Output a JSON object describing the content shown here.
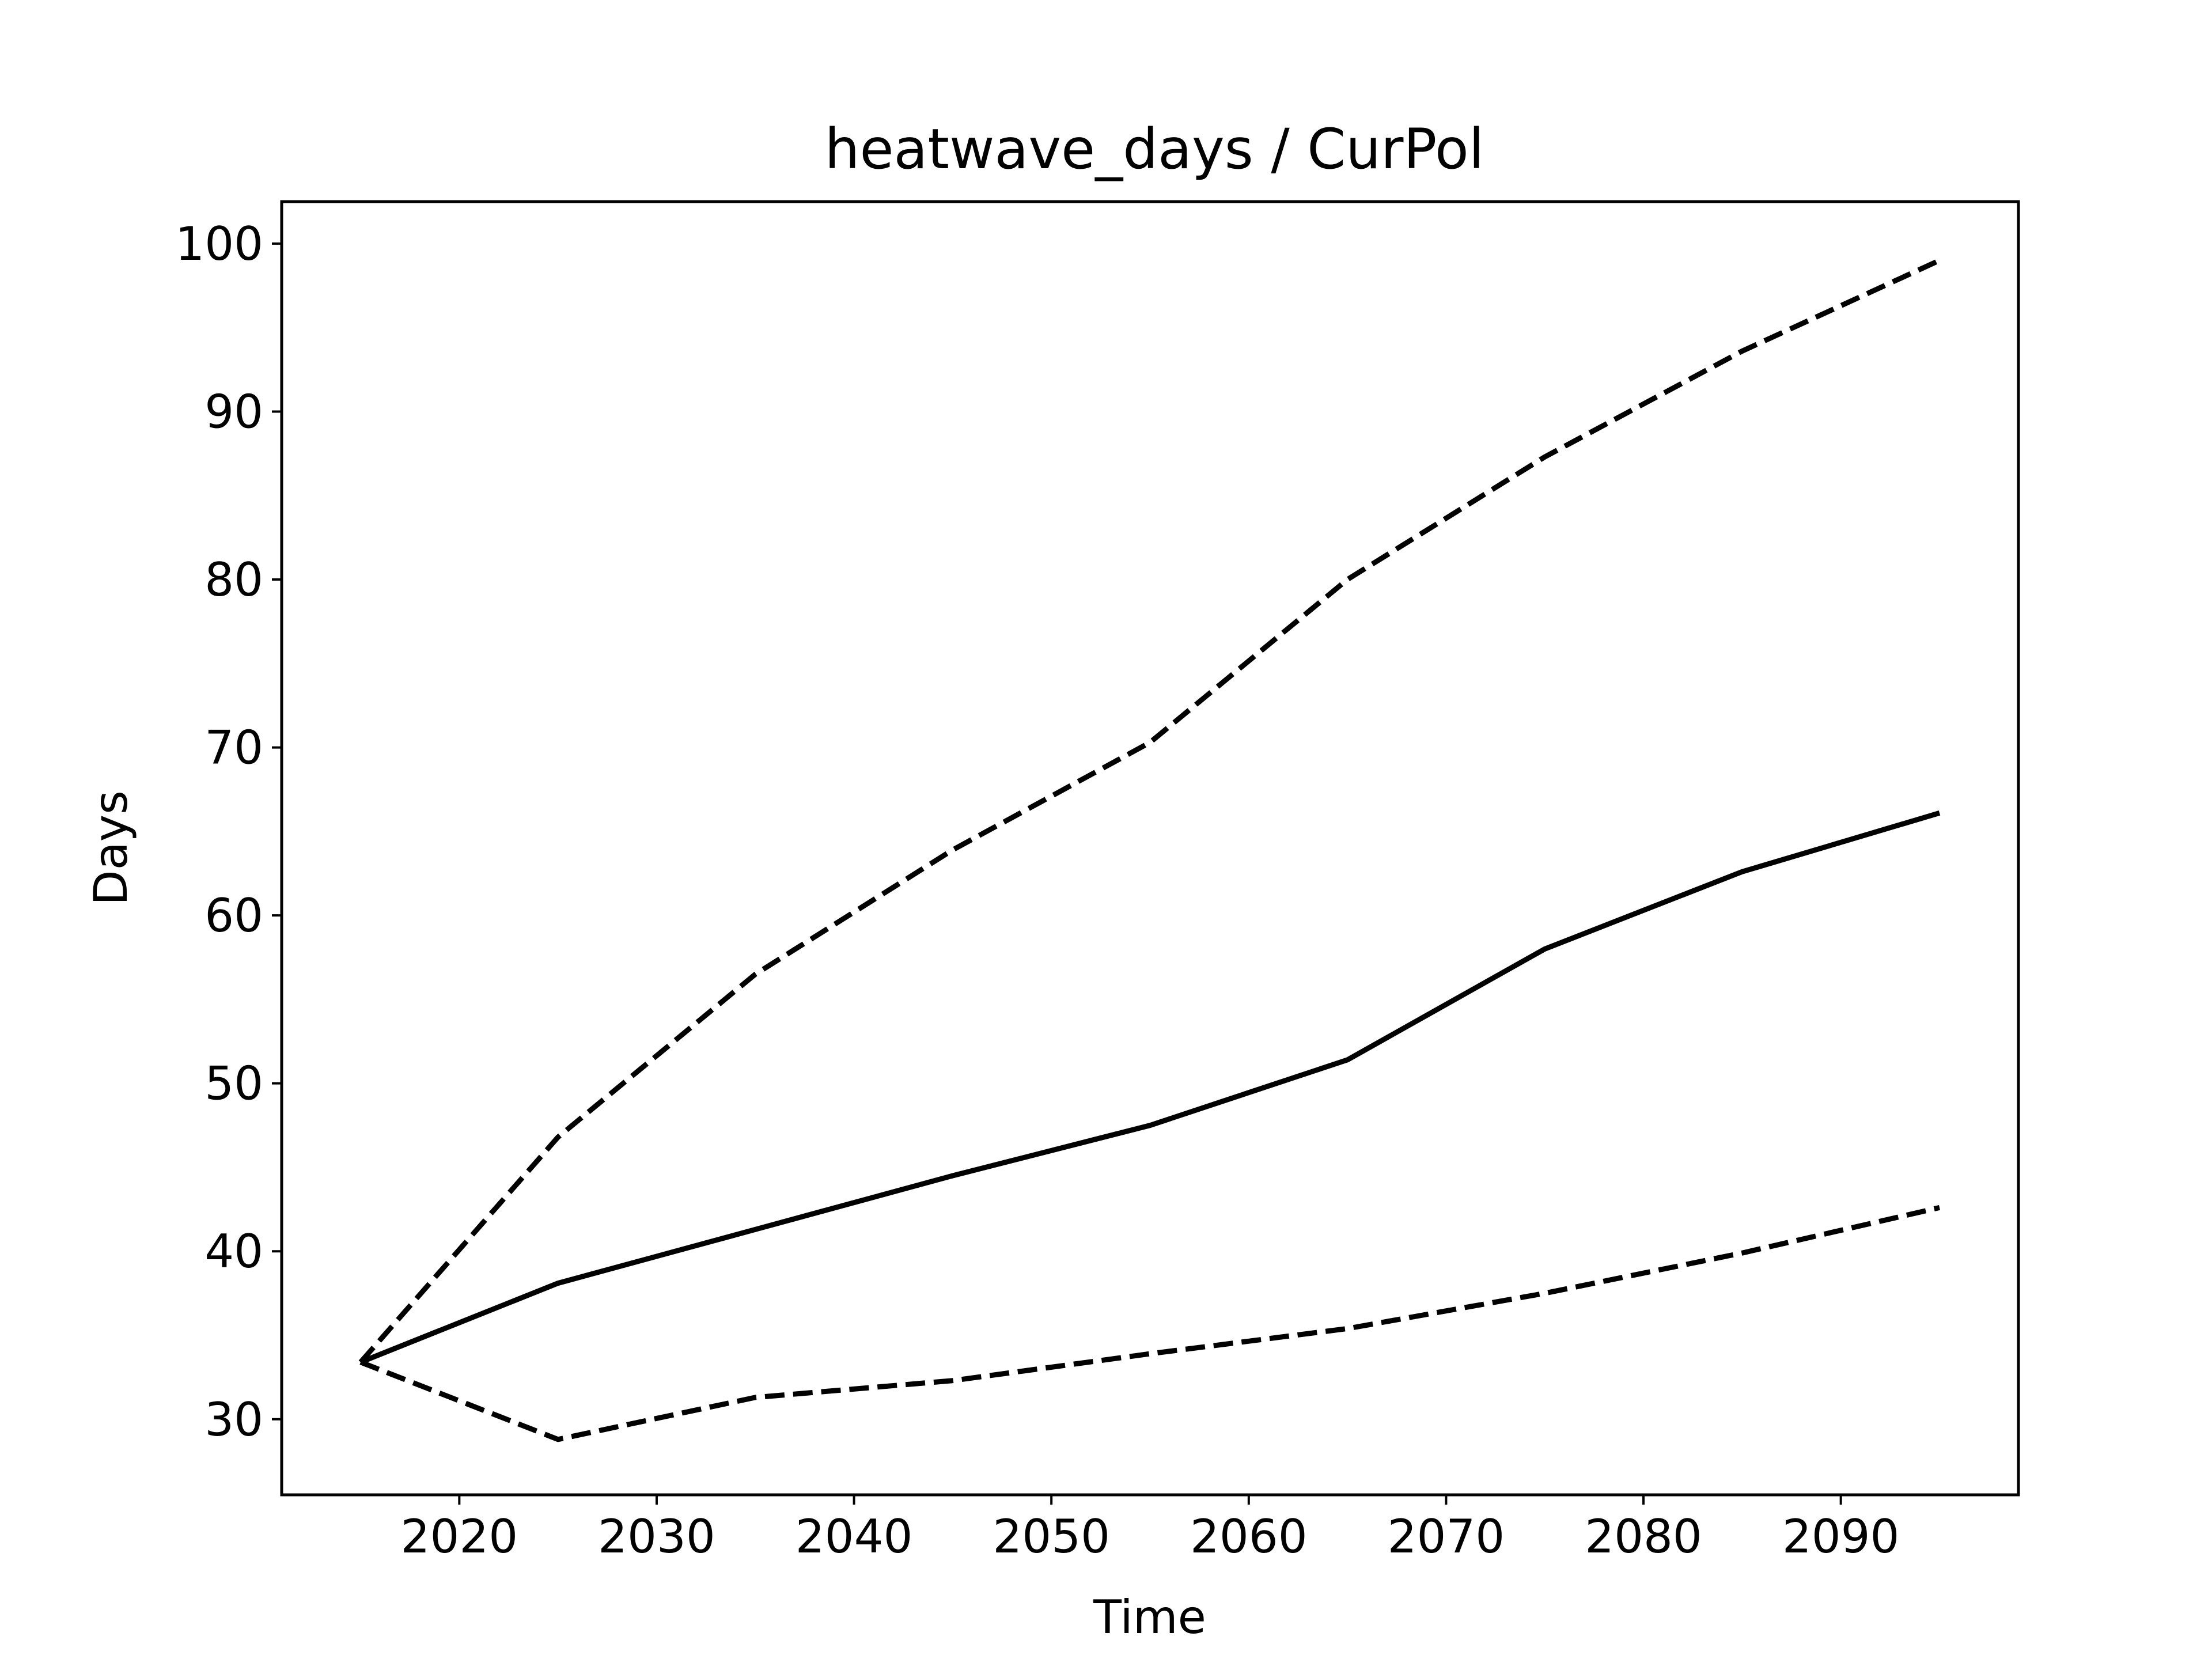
{
  "chart_data": {
    "type": "line",
    "title": "heatwave_days / CurPol",
    "xlabel": "Time",
    "ylabel": "Days",
    "xlim": [
      2011,
      2099
    ],
    "ylim": [
      25.5,
      102.5
    ],
    "x_ticks": [
      2020,
      2030,
      2040,
      2050,
      2060,
      2070,
      2080,
      2090
    ],
    "y_ticks": [
      30,
      40,
      50,
      60,
      70,
      80,
      90,
      100
    ],
    "grid": false,
    "legend": "none",
    "x": [
      2015,
      2025,
      2035,
      2045,
      2055,
      2065,
      2075,
      2085,
      2095
    ],
    "series": [
      {
        "style": "solid",
        "color": "#000000",
        "values": [
          33.4,
          38.1,
          41.3,
          44.5,
          47.5,
          51.4,
          58.0,
          62.6,
          66.1
        ]
      },
      {
        "style": "dashed",
        "color": "#000000",
        "values": [
          33.4,
          46.8,
          56.5,
          63.9,
          70.3,
          80.0,
          87.3,
          93.6,
          99.0
        ]
      },
      {
        "style": "dashed",
        "color": "#000000",
        "values": [
          33.4,
          28.8,
          31.3,
          32.3,
          33.9,
          35.4,
          37.5,
          39.9,
          42.6
        ]
      }
    ]
  }
}
